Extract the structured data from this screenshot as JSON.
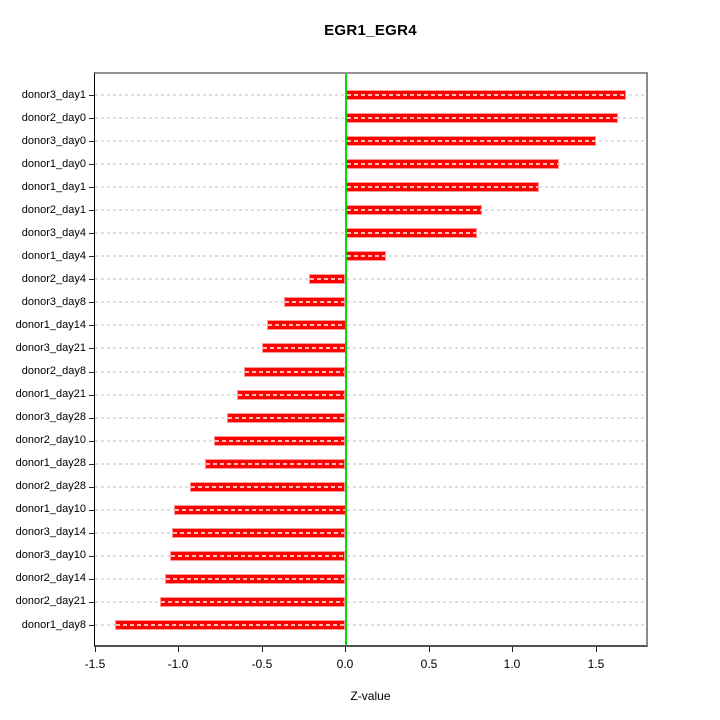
{
  "chart_data": {
    "type": "bar",
    "orientation": "horizontal",
    "title": "EGR1_EGR4",
    "xlabel": "Z-value",
    "categories": [
      "donor3_day1",
      "donor2_day0",
      "donor3_day0",
      "donor1_day0",
      "donor1_day1",
      "donor2_day1",
      "donor3_day4",
      "donor1_day4",
      "donor2_day4",
      "donor3_day8",
      "donor1_day14",
      "donor3_day21",
      "donor2_day8",
      "donor1_day21",
      "donor3_day28",
      "donor2_day10",
      "donor1_day28",
      "donor2_day28",
      "donor1_day10",
      "donor3_day14",
      "donor3_day10",
      "donor2_day14",
      "donor2_day21",
      "donor1_day8"
    ],
    "values": [
      1.68,
      1.63,
      1.5,
      1.28,
      1.16,
      0.82,
      0.79,
      0.24,
      -0.22,
      -0.37,
      -0.47,
      -0.5,
      -0.61,
      -0.65,
      -0.71,
      -0.79,
      -0.84,
      -0.93,
      -1.03,
      -1.04,
      -1.05,
      -1.08,
      -1.11,
      -1.38
    ],
    "xlim": [
      -1.5,
      1.8
    ],
    "xticks": [
      -1.5,
      -1.0,
      -0.5,
      0.0,
      0.5,
      1.0,
      1.5
    ],
    "xtick_labels": [
      "-1.5",
      "-1.0",
      "-0.5",
      "0.0",
      "0.5",
      "1.0",
      "1.5"
    ],
    "grid": true,
    "grid_style": "dashed",
    "zero_line": true,
    "legend": false,
    "colors": {
      "bar": "#fe0101",
      "bar_border": "#ff9595",
      "bar_dash_overlay": "#ffffff",
      "zero_line": "#00dd00",
      "gridline": "#dedede",
      "box": "#8a8a8a",
      "axis": "#222222",
      "text": "#000000"
    }
  }
}
